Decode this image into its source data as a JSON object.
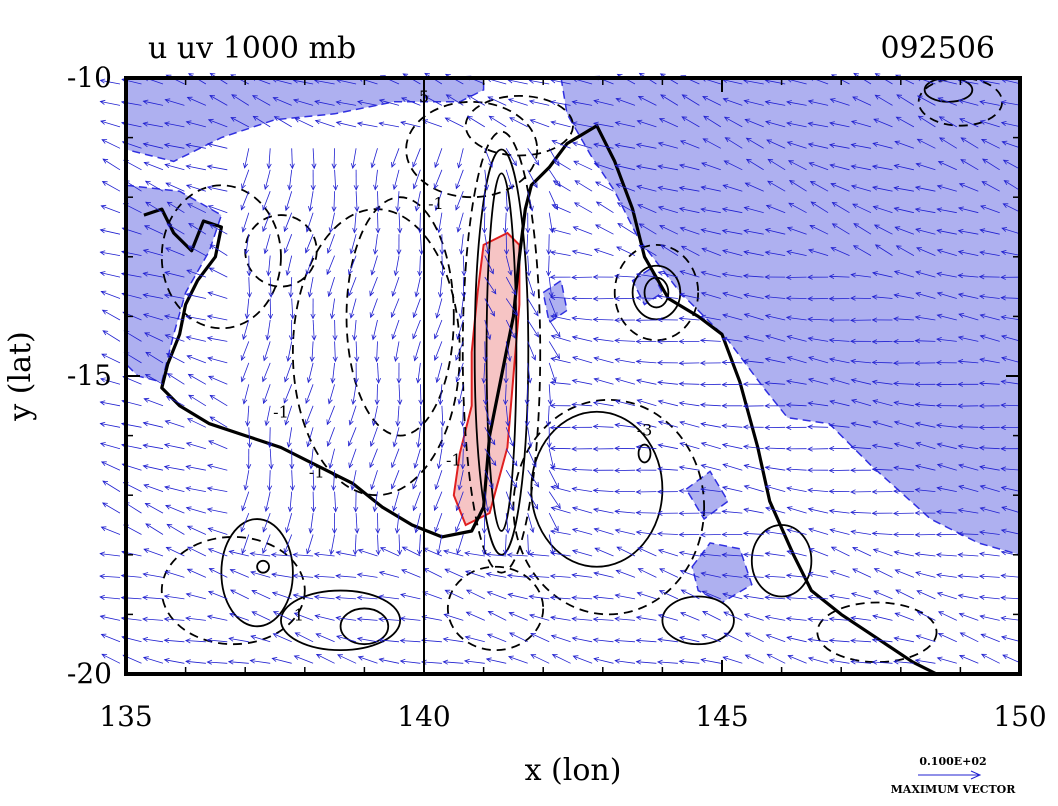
{
  "chart_data": {
    "type": "contour",
    "title": "u  uv  1000  mb",
    "title_right": "092506",
    "xlabel": "x (lon)",
    "ylabel": "y (lat)",
    "xlim": [
      135,
      150
    ],
    "ylim": [
      -20,
      -10
    ],
    "xticks": [
      135,
      140,
      145,
      150
    ],
    "yticks": [
      -10,
      -15,
      -20
    ],
    "xtick_labels": [
      "135",
      "140",
      "145",
      "150"
    ],
    "ytick_labels": [
      "-10",
      "-15",
      "-20"
    ],
    "reference_line_lon": 140,
    "vector_key": {
      "value_label": "0.100E+02",
      "caption": "MAXIMUM VECTOR"
    },
    "contour_labels": [
      {
        "text": "5",
        "lon": 140.0,
        "lat": -10.4
      },
      {
        "text": "-1",
        "lon": 140.2,
        "lat": -12.2
      },
      {
        "text": "-1",
        "lon": 137.6,
        "lat": -15.7
      },
      {
        "text": "-1",
        "lon": 138.2,
        "lat": -16.7
      },
      {
        "text": "-1",
        "lon": 140.5,
        "lat": -16.5
      },
      {
        "text": "1",
        "lon": 137.9,
        "lat": -19.1
      },
      {
        "text": "-3",
        "lon": 143.7,
        "lat": -16.0
      }
    ],
    "shading": {
      "negative_color": "#aeb0f0",
      "positive_color": "#f6c4c4",
      "vector_color": "#2020d0"
    },
    "negative_regions": [
      [
        [
          135,
          -10
        ],
        [
          135,
          -11.2
        ],
        [
          135.8,
          -11.4
        ],
        [
          136.6,
          -11.0
        ],
        [
          137.5,
          -10.7
        ],
        [
          138.5,
          -10.6
        ],
        [
          139.5,
          -10.4
        ],
        [
          140.6,
          -10.4
        ],
        [
          141.0,
          -10.2
        ],
        [
          141.0,
          -10
        ]
      ],
      [
        [
          135,
          -11.8
        ],
        [
          135.9,
          -11.9
        ],
        [
          136.6,
          -12.3
        ],
        [
          136.4,
          -12.9
        ],
        [
          136.0,
          -13.6
        ],
        [
          135.8,
          -14.3
        ],
        [
          135.6,
          -15.1
        ],
        [
          135.2,
          -15.0
        ],
        [
          135,
          -14.8
        ]
      ],
      [
        [
          142.3,
          -10
        ],
        [
          142.4,
          -10.6
        ],
        [
          142.8,
          -11.3
        ],
        [
          143.2,
          -11.9
        ],
        [
          143.6,
          -12.7
        ],
        [
          144.3,
          -13.6
        ],
        [
          145.1,
          -14.4
        ],
        [
          145.7,
          -15.2
        ],
        [
          146.1,
          -15.7
        ],
        [
          146.8,
          -15.8
        ],
        [
          147.5,
          -16.5
        ],
        [
          148.5,
          -17.4
        ],
        [
          149.3,
          -17.8
        ],
        [
          150,
          -18.0
        ],
        [
          150,
          -10
        ]
      ],
      [
        [
          143.5,
          -13.4
        ],
        [
          143.8,
          -13.2
        ],
        [
          144.0,
          -13.6
        ],
        [
          143.7,
          -13.8
        ]
      ],
      [
        [
          142.0,
          -13.6
        ],
        [
          142.3,
          -13.4
        ],
        [
          142.4,
          -13.9
        ],
        [
          142.1,
          -14.1
        ]
      ],
      [
        [
          144.5,
          -18.2
        ],
        [
          144.8,
          -17.8
        ],
        [
          145.3,
          -17.9
        ],
        [
          145.5,
          -18.5
        ],
        [
          145.0,
          -18.8
        ],
        [
          144.6,
          -18.6
        ]
      ],
      [
        [
          144.4,
          -16.9
        ],
        [
          144.8,
          -16.6
        ],
        [
          145.1,
          -17.1
        ],
        [
          144.7,
          -17.4
        ]
      ]
    ],
    "positive_regions": [
      [
        [
          141.4,
          -12.6
        ],
        [
          141.0,
          -12.8
        ],
        [
          140.9,
          -13.6
        ],
        [
          140.8,
          -14.6
        ],
        [
          140.8,
          -15.5
        ],
        [
          140.6,
          -16.3
        ],
        [
          140.5,
          -17.0
        ],
        [
          140.7,
          -17.5
        ],
        [
          141.1,
          -17.3
        ],
        [
          141.4,
          -16.2
        ],
        [
          141.5,
          -15.0
        ],
        [
          141.6,
          -13.8
        ],
        [
          141.6,
          -12.8
        ]
      ]
    ],
    "coastlines": [
      [
        [
          135.3,
          -12.3
        ],
        [
          135.6,
          -12.2
        ],
        [
          135.8,
          -12.6
        ],
        [
          136.1,
          -12.9
        ],
        [
          136.3,
          -12.4
        ],
        [
          136.6,
          -12.5
        ],
        [
          136.5,
          -13.0
        ],
        [
          136.2,
          -13.4
        ],
        [
          136.0,
          -13.8
        ],
        [
          135.9,
          -14.3
        ],
        [
          135.7,
          -14.8
        ],
        [
          135.6,
          -15.2
        ],
        [
          135.9,
          -15.5
        ],
        [
          136.4,
          -15.8
        ],
        [
          137.0,
          -16.0
        ],
        [
          137.6,
          -16.2
        ],
        [
          138.2,
          -16.5
        ],
        [
          138.8,
          -16.8
        ],
        [
          139.3,
          -17.2
        ],
        [
          139.8,
          -17.5
        ],
        [
          140.3,
          -17.7
        ],
        [
          140.8,
          -17.6
        ],
        [
          141.0,
          -17.2
        ],
        [
          141.1,
          -16.0
        ],
        [
          141.3,
          -15.0
        ],
        [
          141.5,
          -14.0
        ],
        [
          141.6,
          -13.0
        ],
        [
          141.7,
          -12.2
        ],
        [
          141.8,
          -11.8
        ],
        [
          142.1,
          -11.5
        ],
        [
          142.4,
          -11.1
        ],
        [
          142.9,
          -10.8
        ],
        [
          143.2,
          -11.4
        ],
        [
          143.5,
          -12.2
        ],
        [
          143.7,
          -13.0
        ],
        [
          144.1,
          -13.7
        ],
        [
          144.6,
          -14.0
        ],
        [
          145.0,
          -14.3
        ],
        [
          145.3,
          -15.1
        ],
        [
          145.6,
          -16.2
        ],
        [
          145.8,
          -17.1
        ],
        [
          146.2,
          -18.0
        ],
        [
          146.5,
          -18.6
        ],
        [
          147.0,
          -19.0
        ],
        [
          147.6,
          -19.4
        ],
        [
          148.2,
          -19.8
        ],
        [
          148.6,
          -20.0
        ]
      ]
    ]
  }
}
